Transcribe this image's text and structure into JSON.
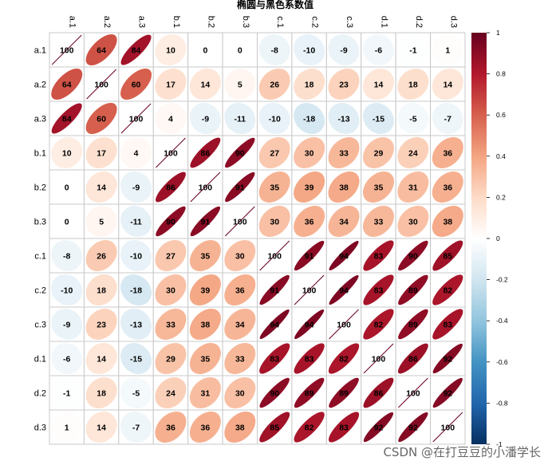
{
  "chart_data": {
    "type": "heatmap",
    "title": "椭圆与黑色系数值",
    "variables": [
      "a.1",
      "a.2",
      "a.3",
      "b.1",
      "b.2",
      "b.3",
      "c.1",
      "c.2",
      "c.3",
      "d.1",
      "d.2",
      "d.3"
    ],
    "matrix": [
      [
        100,
        64,
        84,
        10,
        0,
        0,
        -8,
        -10,
        -9,
        -6,
        -1,
        1
      ],
      [
        64,
        100,
        60,
        17,
        14,
        5,
        26,
        18,
        23,
        14,
        18,
        14
      ],
      [
        84,
        60,
        100,
        4,
        -9,
        -11,
        -10,
        -18,
        -13,
        -15,
        -5,
        -7
      ],
      [
        10,
        17,
        4,
        100,
        86,
        90,
        27,
        30,
        33,
        29,
        24,
        36
      ],
      [
        0,
        14,
        -9,
        86,
        100,
        91,
        35,
        39,
        38,
        35,
        31,
        36
      ],
      [
        0,
        5,
        -11,
        90,
        91,
        100,
        30,
        36,
        34,
        33,
        30,
        38
      ],
      [
        -8,
        26,
        -10,
        27,
        35,
        30,
        100,
        91,
        94,
        83,
        90,
        85
      ],
      [
        -10,
        18,
        -18,
        30,
        39,
        36,
        91,
        100,
        94,
        83,
        89,
        82
      ],
      [
        -9,
        23,
        -13,
        33,
        38,
        34,
        94,
        94,
        100,
        82,
        89,
        83
      ],
      [
        -6,
        14,
        -15,
        29,
        35,
        33,
        83,
        83,
        82,
        100,
        86,
        92
      ],
      [
        -1,
        18,
        -5,
        24,
        31,
        30,
        90,
        89,
        89,
        86,
        100,
        92
      ],
      [
        1,
        14,
        -7,
        36,
        36,
        38,
        85,
        82,
        83,
        92,
        92,
        100
      ]
    ],
    "colorbar": {
      "range": [
        -1,
        1
      ],
      "ticks": [
        "1",
        "0.8",
        "0.6",
        "0.4",
        "0.2",
        "0",
        "-0.2",
        "-0.4",
        "-0.6",
        "-0.8",
        "-1"
      ],
      "colors": [
        "#67001F",
        "#B2182B",
        "#D6604D",
        "#F4A582",
        "#FDDBC7",
        "#FFFFFF",
        "#D1E5F0",
        "#92C5DE",
        "#4393C3",
        "#2166AC",
        "#053061"
      ]
    },
    "label_color": "#000000"
  },
  "watermark": "CSDN @在打豆豆的小潘学长"
}
